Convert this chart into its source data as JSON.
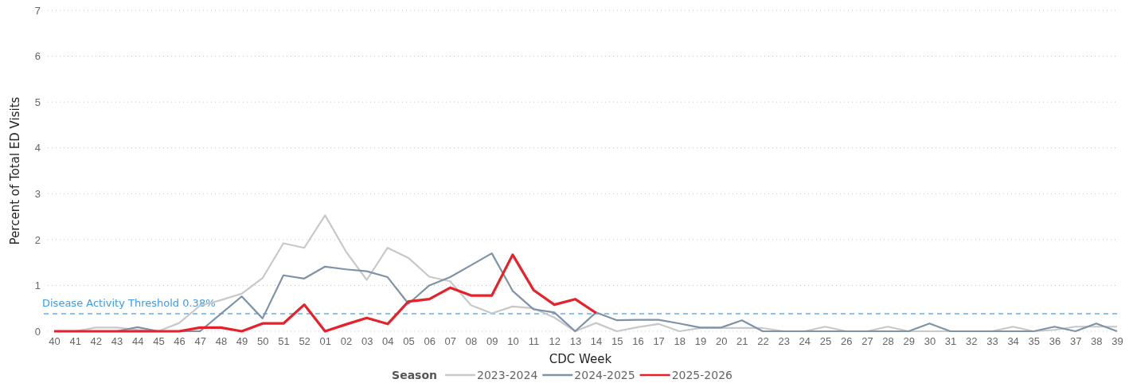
{
  "chart_data": {
    "type": "line",
    "xlabel": "CDC Week",
    "ylabel": "Percent of Total ED Visits",
    "legend_title": "Season",
    "legend": "bottom",
    "grid": "y",
    "marker": "none",
    "line_style": "solid",
    "categories": [
      "40",
      "41",
      "42",
      "43",
      "44",
      "45",
      "46",
      "47",
      "48",
      "49",
      "50",
      "51",
      "52",
      "01",
      "02",
      "03",
      "04",
      "05",
      "06",
      "07",
      "08",
      "09",
      "10",
      "11",
      "12",
      "13",
      "14",
      "15",
      "16",
      "17",
      "18",
      "19",
      "20",
      "21",
      "22",
      "23",
      "24",
      "25",
      "26",
      "27",
      "28",
      "29",
      "30",
      "31",
      "32",
      "33",
      "34",
      "35",
      "36",
      "37",
      "38",
      "39"
    ],
    "ylim": [
      0,
      7
    ],
    "yticks": [
      0,
      1,
      2,
      3,
      4,
      5,
      6,
      7
    ],
    "ref_lines": [
      {
        "axis": "y",
        "value": 0.38,
        "label": "Disease Activity Threshold 0.38%",
        "color": "#8fc0f0",
        "line_style": "dashed"
      }
    ],
    "series": [
      {
        "name": "2023-2024",
        "color": "#c8c8c8",
        "values": [
          0,
          0,
          0.08,
          0.08,
          0.03,
          0,
          0.18,
          0.56,
          0.68,
          0.82,
          1.16,
          1.92,
          1.82,
          2.53,
          1.74,
          1.12,
          1.82,
          1.6,
          1.19,
          1.09,
          0.57,
          0.39,
          0.54,
          0.5,
          0.3,
          0,
          0.18,
          0,
          0.09,
          0.16,
          0,
          0.07,
          0.07,
          0.07,
          0.07,
          0,
          0,
          0.1,
          0,
          0,
          0.1,
          0,
          0,
          0,
          0,
          0,
          0.1,
          0,
          0.03,
          0.1,
          0.1,
          0.1
        ]
      },
      {
        "name": "2024-2025",
        "color": "#7f93a8",
        "values": [
          0,
          0,
          0,
          0,
          0.09,
          0,
          0,
          0,
          0.38,
          0.76,
          0.28,
          1.22,
          1.15,
          1.41,
          1.35,
          1.31,
          1.18,
          0.6,
          1.0,
          1.18,
          1.44,
          1.7,
          0.88,
          0.48,
          0.41,
          0,
          0.41,
          0.24,
          0.25,
          0.25,
          0.17,
          0.08,
          0.08,
          0.24,
          0,
          0,
          0,
          0,
          0,
          0,
          0,
          0,
          0.17,
          0,
          0,
          0,
          0,
          0,
          0.1,
          0,
          0.17,
          0
        ]
      },
      {
        "name": "2025-2026",
        "color": "#e8202a",
        "values": [
          0,
          0,
          0,
          0,
          0,
          0,
          0,
          0.08,
          0.08,
          0,
          0.17,
          0.17,
          0.58,
          0,
          0.15,
          0.29,
          0.16,
          0.65,
          0.7,
          0.95,
          0.78,
          0.78,
          1.67,
          0.9,
          0.58,
          0.7,
          0.4,
          null,
          null,
          null,
          null,
          null,
          null,
          null,
          null,
          null,
          null,
          null,
          null,
          null,
          null,
          null,
          null,
          null,
          null,
          null,
          null,
          null,
          null,
          null,
          null,
          null
        ]
      }
    ]
  }
}
